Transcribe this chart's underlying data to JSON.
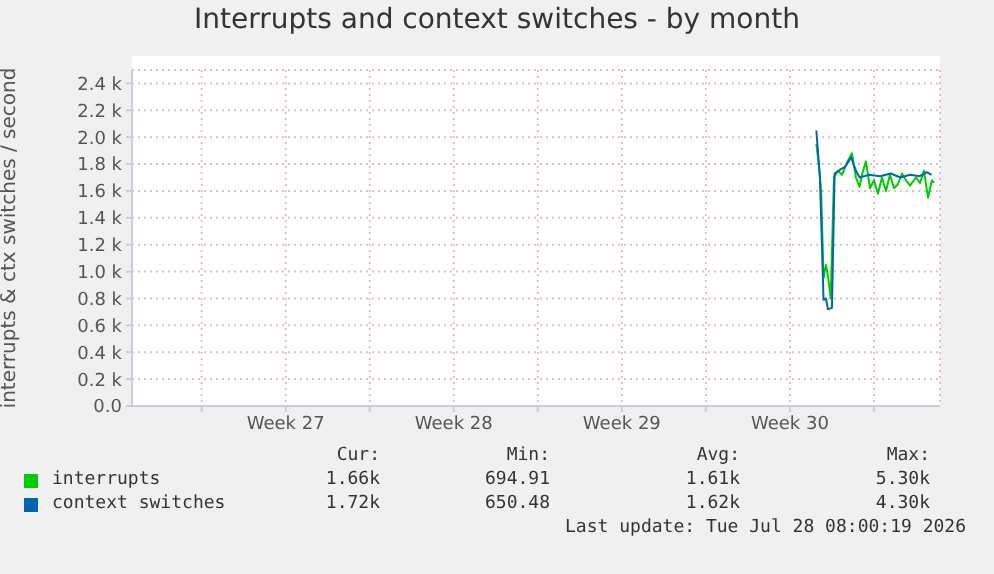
{
  "chart_data": {
    "type": "line",
    "title": "Interrupts and context switches - by month",
    "ylabel": "interrupts & ctx switches / second",
    "xlim": [
      "2026-06-26T02:24",
      "2026-07-29T18:00"
    ],
    "xticks": [
      {
        "value": "2026-06-29",
        "label": null
      },
      {
        "value": "2026-07-02T12:00",
        "label": "Week 27"
      },
      {
        "value": "2026-07-06",
        "label": null
      },
      {
        "value": "2026-07-09T12:00",
        "label": "Week 28"
      },
      {
        "value": "2026-07-13",
        "label": null
      },
      {
        "value": "2026-07-16T12:00",
        "label": "Week 29"
      },
      {
        "value": "2026-07-20",
        "label": null
      },
      {
        "value": "2026-07-23T12:00",
        "label": "Week 30"
      },
      {
        "value": "2026-07-27",
        "label": null
      }
    ],
    "ylim": [
      0,
      2500
    ],
    "yticks": [
      {
        "value": 0,
        "label": "0.0"
      },
      {
        "value": 200,
        "label": "0.2 k"
      },
      {
        "value": 400,
        "label": "0.4 k"
      },
      {
        "value": 600,
        "label": "0.6 k"
      },
      {
        "value": 800,
        "label": "0.8 k"
      },
      {
        "value": 1000,
        "label": "1.0 k"
      },
      {
        "value": 1200,
        "label": "1.2 k"
      },
      {
        "value": 1400,
        "label": "1.4 k"
      },
      {
        "value": 1600,
        "label": "1.6 k"
      },
      {
        "value": 1800,
        "label": "1.8 k"
      },
      {
        "value": 2000,
        "label": "2.0 k"
      },
      {
        "value": 2200,
        "label": "2.2 k"
      },
      {
        "value": 2400,
        "label": "2.4 k"
      }
    ],
    "grid": true,
    "legend": "bottom",
    "marker": "none",
    "line_style": "solid",
    "series": [
      {
        "name": "interrupts",
        "color": "#00cc00",
        "x": [
          "2026-07-24T14:24",
          "2026-07-24T16:48",
          "2026-07-24T19:12",
          "2026-07-24T21:36",
          "2026-07-25T00:00",
          "2026-07-25T02:24",
          "2026-07-25T04:48",
          "2026-07-25T08:00",
          "2026-07-25T12:00",
          "2026-07-25T16:00",
          "2026-07-25T21:36",
          "2026-07-26T02:00",
          "2026-07-26T06:00",
          "2026-07-26T09:36",
          "2026-07-26T12:00",
          "2026-07-26T16:00",
          "2026-07-26T20:00",
          "2026-07-27T00:00",
          "2026-07-27T04:00",
          "2026-07-27T08:00",
          "2026-07-27T12:00",
          "2026-07-27T16:00",
          "2026-07-27T20:00",
          "2026-07-28T00:00",
          "2026-07-28T04:00",
          "2026-07-28T08:00",
          "2026-07-28T12:00",
          "2026-07-28T18:00",
          "2026-07-28T22:00",
          "2026-07-29T02:00",
          "2026-07-29T06:00",
          "2026-07-29T10:00",
          "2026-07-29T12:00"
        ],
        "values": [
          1950,
          1800,
          1600,
          950,
          1050,
          950,
          800,
          1700,
          1750,
          1720,
          1820,
          1880,
          1700,
          1630,
          1720,
          1820,
          1620,
          1680,
          1580,
          1700,
          1600,
          1720,
          1620,
          1650,
          1730,
          1680,
          1640,
          1700,
          1660,
          1750,
          1550,
          1680,
          1660
        ]
      },
      {
        "name": "context switches",
        "color": "#0066b3",
        "x": [
          "2026-07-24T14:24",
          "2026-07-24T18:00",
          "2026-07-24T21:36",
          "2026-07-25T00:00",
          "2026-07-25T02:00",
          "2026-07-25T06:00",
          "2026-07-25T08:40",
          "2026-07-25T14:24",
          "2026-07-25T19:12",
          "2026-07-26T01:12",
          "2026-07-26T06:00",
          "2026-07-26T09:36",
          "2026-07-26T19:12",
          "2026-07-27T06:00",
          "2026-07-27T16:48",
          "2026-07-28T02:24",
          "2026-07-28T12:00",
          "2026-07-28T21:36",
          "2026-07-29T04:48",
          "2026-07-29T09:36"
        ],
        "values": [
          2050,
          1700,
          790,
          800,
          720,
          730,
          1730,
          1760,
          1780,
          1850,
          1750,
          1700,
          1720,
          1710,
          1730,
          1700,
          1720,
          1710,
          1740,
          1720
        ]
      }
    ],
    "annotations": [
      "Cur:",
      "Min:",
      "Avg:",
      "Max:",
      "1.66k",
      "694.91",
      "1.61k",
      "5.30k",
      "1.72k",
      "650.48",
      "1.62k",
      "4.30k",
      "Last update: Tue Jul 28 08:00:19 2026"
    ]
  }
}
